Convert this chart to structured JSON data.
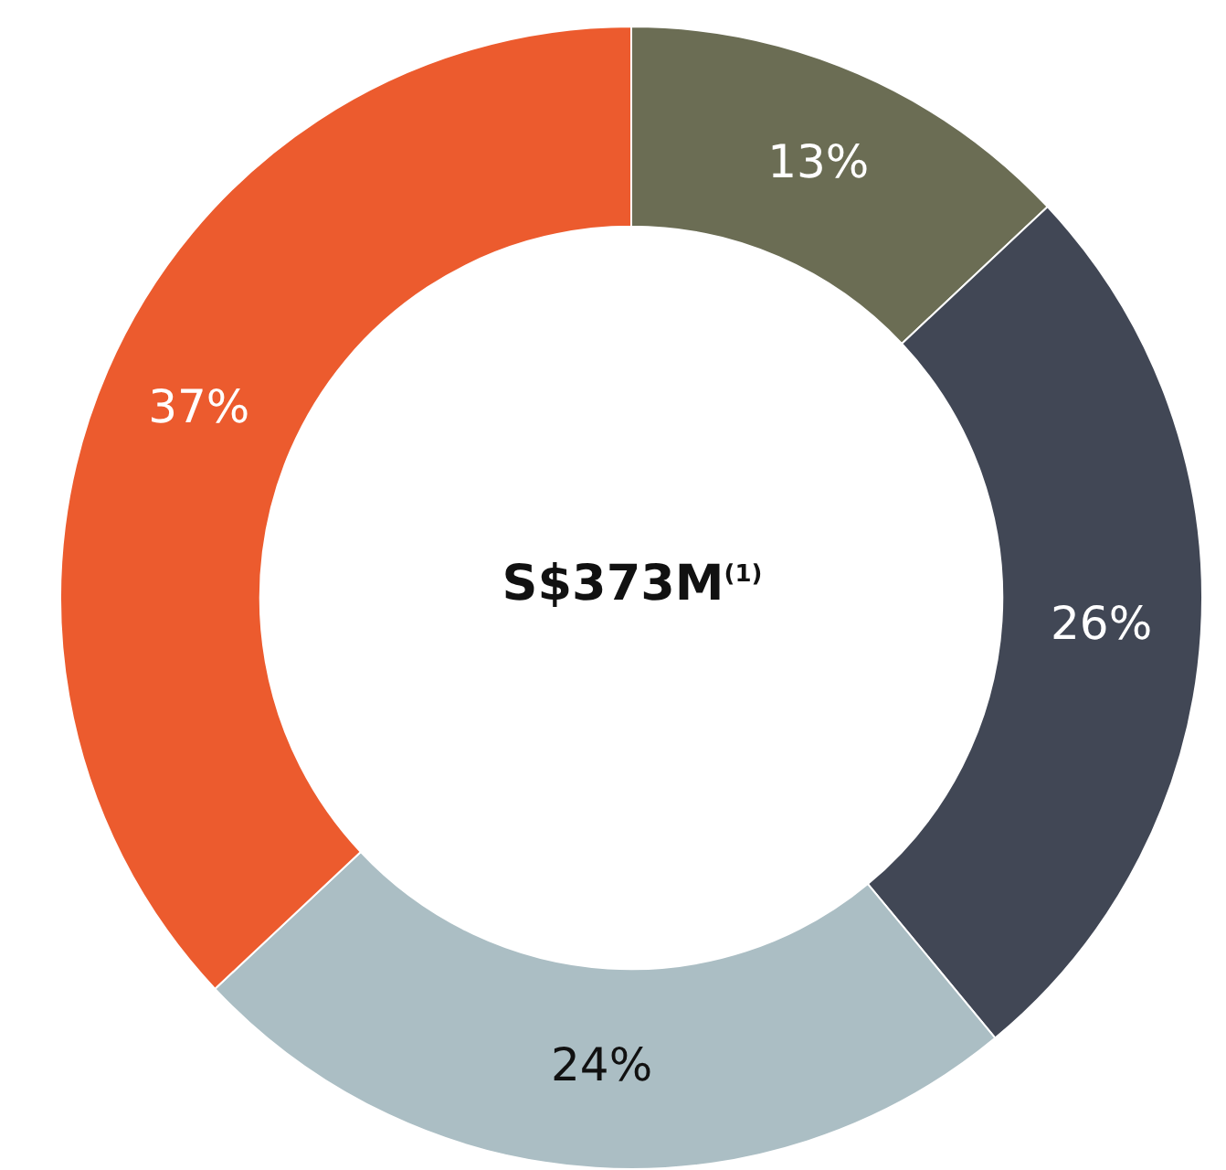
{
  "chart_data": {
    "type": "donut",
    "title": "S$373M$^{(1)}$",
    "categories": [
      null,
      null,
      null,
      null
    ],
    "values": [
      13,
      26,
      24,
      37
    ],
    "colors": [
      "#6b6d54",
      "#414755",
      "#abbec4",
      "#ec5b2e"
    ],
    "value_labels": [
      "13%",
      "26%",
      "24%",
      "37%"
    ],
    "legend": false
  }
}
